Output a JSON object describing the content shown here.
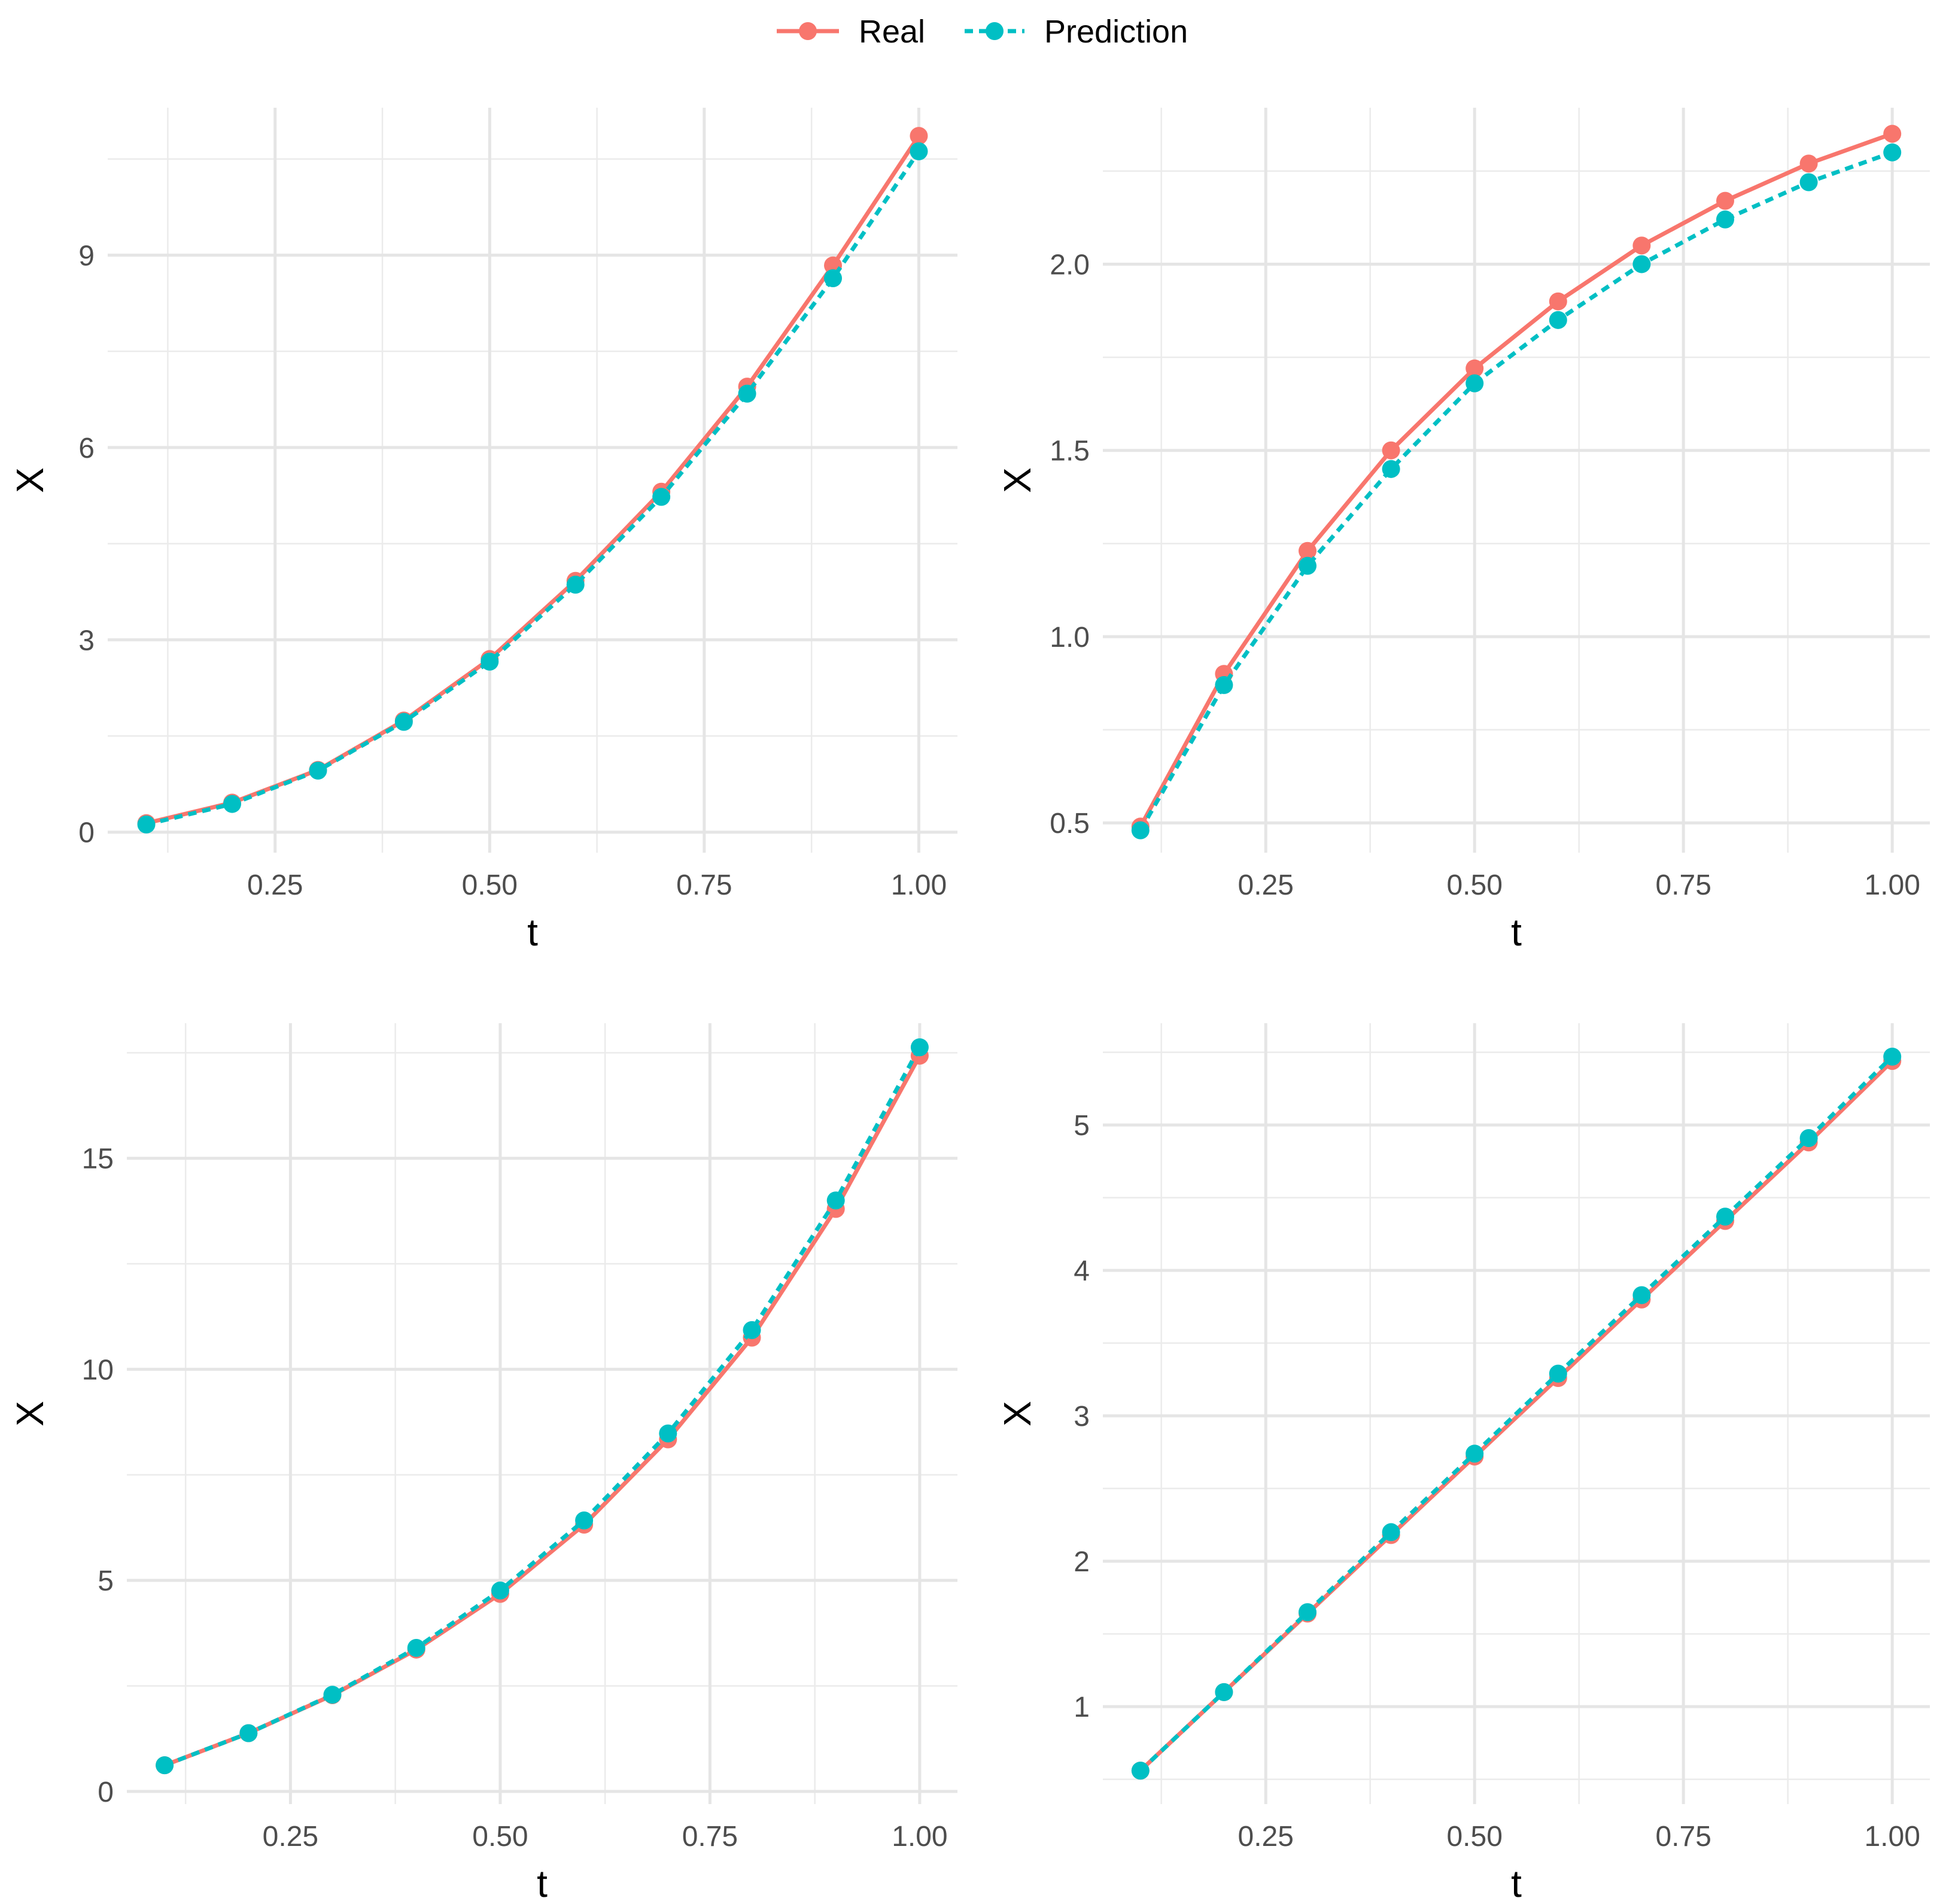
{
  "legend": {
    "items": [
      {
        "label": "Real",
        "color": "#F8766D",
        "linetype": "solid"
      },
      {
        "label": "Prediction",
        "color": "#00BFC4",
        "linetype": "dotted"
      }
    ]
  },
  "chart_data": [
    {
      "type": "line",
      "xlabel": "t",
      "ylabel": "X",
      "xlim": [
        0.055,
        1.045
      ],
      "ylim": [
        -0.32,
        11.3
      ],
      "xticks": [
        0.25,
        0.5,
        0.75,
        1.0
      ],
      "xtick_labels": [
        "0.25",
        "0.50",
        "0.75",
        "1.00"
      ],
      "yticks": [
        0,
        3,
        6,
        9
      ],
      "ytick_labels": [
        "0",
        "3",
        "6",
        "9"
      ],
      "grid": true,
      "x": [
        0.1,
        0.2,
        0.3,
        0.4,
        0.5,
        0.6,
        0.7,
        0.8,
        0.9,
        1.0
      ],
      "series": [
        {
          "name": "Real",
          "color": "#F8766D",
          "values": [
            0.14,
            0.46,
            0.97,
            1.74,
            2.7,
            3.92,
            5.31,
            6.95,
            8.84,
            10.86
          ]
        },
        {
          "name": "Prediction",
          "color": "#00BFC4",
          "values": [
            0.12,
            0.44,
            0.96,
            1.72,
            2.66,
            3.86,
            5.23,
            6.84,
            8.64,
            10.62
          ]
        }
      ]
    },
    {
      "type": "line",
      "xlabel": "t",
      "ylabel": "X",
      "xlim": [
        0.055,
        1.045
      ],
      "ylim": [
        0.42,
        2.42
      ],
      "xticks": [
        0.25,
        0.5,
        0.75,
        1.0
      ],
      "xtick_labels": [
        "0.25",
        "0.50",
        "0.75",
        "1.00"
      ],
      "yticks": [
        0.5,
        1.0,
        1.5,
        2.0
      ],
      "ytick_labels": [
        "0.5",
        "1.0",
        "1.5",
        "2.0"
      ],
      "grid": true,
      "x": [
        0.1,
        0.2,
        0.3,
        0.4,
        0.5,
        0.6,
        0.7,
        0.8,
        0.9,
        1.0
      ],
      "series": [
        {
          "name": "Real",
          "color": "#F8766D",
          "values": [
            0.49,
            0.9,
            1.23,
            1.5,
            1.72,
            1.9,
            2.05,
            2.17,
            2.27,
            2.35
          ]
        },
        {
          "name": "Prediction",
          "color": "#00BFC4",
          "values": [
            0.48,
            0.87,
            1.19,
            1.45,
            1.68,
            1.85,
            2.0,
            2.12,
            2.22,
            2.3
          ]
        }
      ]
    },
    {
      "type": "line",
      "xlabel": "t",
      "ylabel": "X",
      "xlim": [
        0.055,
        1.045
      ],
      "ylim": [
        -0.3,
        18.2
      ],
      "xticks": [
        0.25,
        0.5,
        0.75,
        1.0
      ],
      "xtick_labels": [
        "0.25",
        "0.50",
        "0.75",
        "1.00"
      ],
      "yticks": [
        0,
        5,
        10,
        15
      ],
      "ytick_labels": [
        "0",
        "5",
        "10",
        "15"
      ],
      "grid": true,
      "x": [
        0.1,
        0.2,
        0.3,
        0.4,
        0.5,
        0.6,
        0.7,
        0.8,
        0.9,
        1.0
      ],
      "series": [
        {
          "name": "Real",
          "color": "#F8766D",
          "values": [
            0.62,
            1.38,
            2.28,
            3.36,
            4.68,
            6.32,
            8.34,
            10.75,
            13.8,
            17.43
          ]
        },
        {
          "name": "Prediction",
          "color": "#00BFC4",
          "values": [
            0.62,
            1.38,
            2.29,
            3.4,
            4.76,
            6.42,
            8.48,
            10.93,
            14.0,
            17.63
          ]
        }
      ]
    },
    {
      "type": "line",
      "xlabel": "t",
      "ylabel": "X",
      "xlim": [
        0.055,
        1.045
      ],
      "ylim": [
        0.33,
        5.7
      ],
      "xticks": [
        0.25,
        0.5,
        0.75,
        1.0
      ],
      "xtick_labels": [
        "0.25",
        "0.50",
        "0.75",
        "1.00"
      ],
      "yticks": [
        1,
        2,
        3,
        4,
        5
      ],
      "ytick_labels": [
        "1",
        "2",
        "3",
        "4",
        "5"
      ],
      "grid": true,
      "x": [
        0.1,
        0.2,
        0.3,
        0.4,
        0.5,
        0.6,
        0.7,
        0.8,
        0.9,
        1.0
      ],
      "series": [
        {
          "name": "Real",
          "color": "#F8766D",
          "values": [
            0.56,
            1.1,
            1.64,
            2.18,
            2.72,
            3.26,
            3.8,
            4.34,
            4.88,
            5.44
          ]
        },
        {
          "name": "Prediction",
          "color": "#00BFC4",
          "values": [
            0.56,
            1.1,
            1.65,
            2.2,
            2.74,
            3.29,
            3.83,
            4.37,
            4.91,
            5.47
          ]
        }
      ]
    }
  ]
}
